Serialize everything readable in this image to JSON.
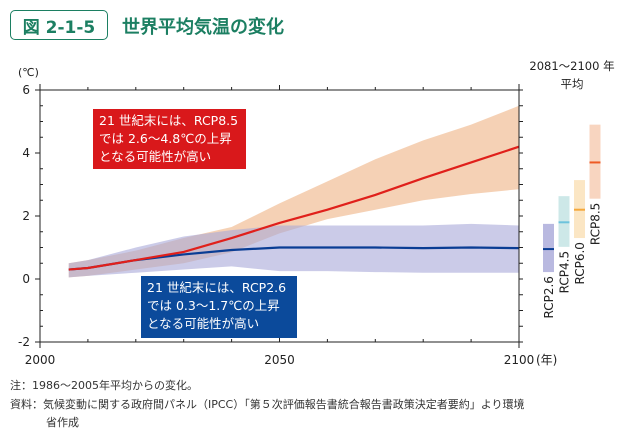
{
  "figure_number": "図 2-1-5",
  "figure_title": "世界平均気温の変化",
  "chart_data": {
    "type": "area",
    "title": "世界平均気温の変化",
    "ylabel": "(℃)",
    "xlabel": "(年)",
    "xlim": [
      2000,
      2100
    ],
    "ylim": [
      -2,
      6
    ],
    "x_ticks": [
      2000,
      2050,
      2100
    ],
    "x_tick_labels": [
      "2000",
      "2050",
      "2100"
    ],
    "y_ticks": [
      -2,
      0,
      2,
      4,
      6
    ],
    "y_tick_labels": [
      "-2",
      "0",
      "2",
      "4",
      "6"
    ],
    "x": [
      2006,
      2010,
      2020,
      2030,
      2040,
      2050,
      2060,
      2070,
      2080,
      2090,
      2100
    ],
    "series": [
      {
        "name": "RCP8.5",
        "color": "#e0201b",
        "band_color": "#f2c29c",
        "mean": [
          0.3,
          0.35,
          0.6,
          0.86,
          1.3,
          1.78,
          2.2,
          2.67,
          3.2,
          3.7,
          4.2
        ],
        "upper": [
          0.5,
          0.6,
          0.9,
          1.3,
          1.65,
          2.4,
          3.1,
          3.8,
          4.4,
          4.9,
          5.5
        ],
        "lower": [
          0.05,
          0.1,
          0.3,
          0.5,
          0.85,
          1.45,
          1.9,
          2.2,
          2.5,
          2.7,
          2.85
        ]
      },
      {
        "name": "RCP2.6",
        "color": "#0a3d94",
        "band_color": "#a9a9d8",
        "mean": [
          0.3,
          0.35,
          0.6,
          0.78,
          0.92,
          1.0,
          1.0,
          1.0,
          0.98,
          1.0,
          0.98
        ],
        "upper": [
          0.5,
          0.6,
          1.0,
          1.35,
          1.55,
          1.7,
          1.7,
          1.7,
          1.7,
          1.75,
          1.7
        ],
        "lower": [
          0.05,
          0.1,
          0.2,
          0.3,
          0.4,
          0.25,
          0.25,
          0.22,
          0.2,
          0.2,
          0.2
        ]
      }
    ],
    "period_avg": {
      "title_line1": "2081〜2100 年",
      "title_line2": "平均",
      "bars": [
        {
          "name": "RCP2.6",
          "mean": 0.95,
          "low": 0.22,
          "high": 1.75,
          "color": "#0a3d94",
          "fill": "#b9b9e0"
        },
        {
          "name": "RCP4.5",
          "mean": 1.8,
          "low": 1.02,
          "high": 2.63,
          "color": "#6cc3dc",
          "fill": "#cde8e8"
        },
        {
          "name": "RCP6.0",
          "mean": 2.2,
          "low": 1.3,
          "high": 3.14,
          "color": "#f5a83c",
          "fill": "#fbe6c4"
        },
        {
          "name": "RCP8.5",
          "mean": 3.7,
          "low": 2.55,
          "high": 4.9,
          "color": "#ee5a24",
          "fill": "#f8d5c0"
        }
      ]
    },
    "annotations": [
      {
        "lines": [
          "21 世紀末には、RCP8.5",
          "では 2.6〜4.8℃の上昇",
          "となる可能性が高い"
        ],
        "color": "#d9181b"
      },
      {
        "lines": [
          "21 世紀末には、RCP2.6",
          "では 0.3〜1.7℃の上昇",
          "となる可能性が高い"
        ],
        "color": "#0b4a9b"
      }
    ]
  },
  "notes": {
    "note": "注：1986〜2005年平均からの変化。",
    "source": "資料：気候変動に関する政府間パネル（IPCC）「第５次評価報告書統合報告書政策決定者要約」より環境",
    "source_cont": "省作成"
  }
}
